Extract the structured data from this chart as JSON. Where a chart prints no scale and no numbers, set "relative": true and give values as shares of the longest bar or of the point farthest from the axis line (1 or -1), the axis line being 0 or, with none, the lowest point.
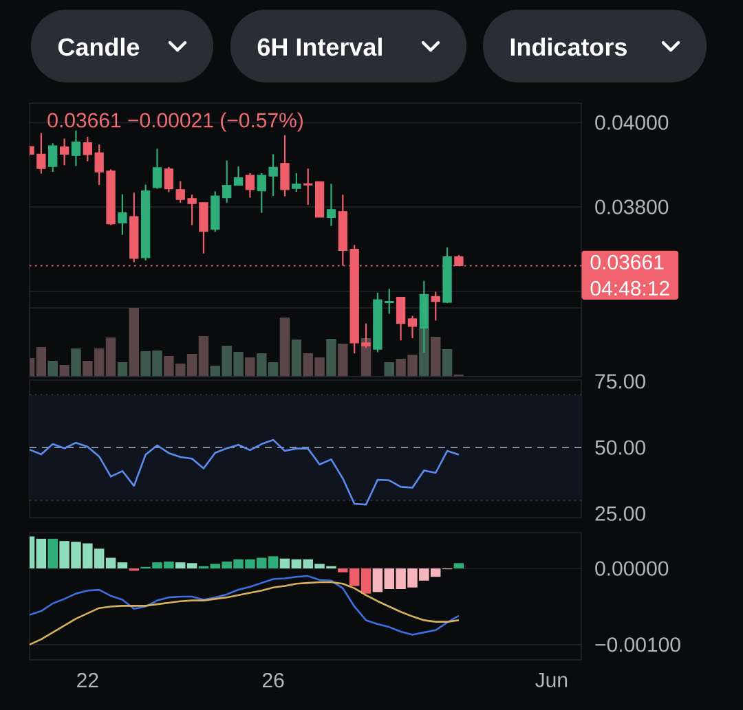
{
  "chart_data": [
    {
      "type": "other",
      "annotations": [
        "Candle",
        "6H Interval",
        "Indicators"
      ]
    },
    {
      "type": "candlestick",
      "x": [
        20.75,
        21,
        21.25,
        21.5,
        21.75,
        22,
        22.25,
        22.5,
        22.75,
        23,
        23.25,
        23.5,
        23.75,
        24,
        24.25,
        24.5,
        24.75,
        25,
        25.25,
        25.5,
        25.75,
        26,
        26.25,
        26.5,
        26.75,
        27,
        27.25,
        27.5,
        27.75,
        28,
        28.25,
        28.5,
        28.75,
        29,
        29.25,
        29.5,
        29.75,
        30
      ],
      "ohlc": [
        [
          0.03943,
          0.03945,
          0.03922,
          0.03925
        ],
        [
          0.03925,
          0.03975,
          0.03879,
          0.03891
        ],
        [
          0.03896,
          0.03951,
          0.03883,
          0.03945
        ],
        [
          0.03942,
          0.03962,
          0.03899,
          0.03925
        ],
        [
          0.03922,
          0.03981,
          0.03897,
          0.03954
        ],
        [
          0.03952,
          0.03966,
          0.03908,
          0.03924
        ],
        [
          0.03928,
          0.03948,
          0.03852,
          0.03883
        ],
        [
          0.03885,
          0.03889,
          0.03757,
          0.0376
        ],
        [
          0.03762,
          0.0383,
          0.03734,
          0.03786
        ],
        [
          0.03777,
          0.03834,
          0.03669,
          0.03678
        ],
        [
          0.0368,
          0.03853,
          0.03673,
          0.03838
        ],
        [
          0.03846,
          0.03938,
          0.03843,
          0.03893
        ],
        [
          0.0389,
          0.03895,
          0.03835,
          0.03843
        ],
        [
          0.03841,
          0.03861,
          0.0381,
          0.03818
        ],
        [
          0.0382,
          0.03829,
          0.03757,
          0.03808
        ],
        [
          0.0381,
          0.03811,
          0.0369,
          0.03742
        ],
        [
          0.03747,
          0.03837,
          0.03741,
          0.03826
        ],
        [
          0.03822,
          0.0391,
          0.0381,
          0.03851
        ],
        [
          0.03851,
          0.03896,
          0.03851,
          0.03869
        ],
        [
          0.03875,
          0.0388,
          0.03822,
          0.03841
        ],
        [
          0.03838,
          0.0388,
          0.03786,
          0.03875
        ],
        [
          0.03873,
          0.03925,
          0.03826,
          0.03894
        ],
        [
          0.03903,
          0.0397,
          0.03825,
          0.03841
        ],
        [
          0.03844,
          0.0388,
          0.03836,
          0.03854
        ],
        [
          0.03855,
          0.03891,
          0.03805,
          0.03852
        ],
        [
          0.0386,
          0.0386,
          0.03776,
          0.03776
        ],
        [
          0.03775,
          0.03855,
          0.03755,
          0.03794
        ],
        [
          0.03789,
          0.03829,
          0.03661,
          0.03697
        ],
        [
          0.037,
          0.0371,
          0.03453,
          0.03478
        ],
        [
          0.03478,
          0.03524,
          0.03466,
          0.03471
        ],
        [
          0.03463,
          0.03597,
          0.03456,
          0.0358
        ],
        [
          0.03573,
          0.03606,
          0.03547,
          0.03576
        ],
        [
          0.03586,
          0.03586,
          0.03484,
          0.03524
        ],
        [
          0.03535,
          0.03542,
          0.03489,
          0.03517
        ],
        [
          0.03513,
          0.03625,
          0.03455,
          0.03593
        ],
        [
          0.03588,
          0.03599,
          0.03531,
          0.03576
        ],
        [
          0.03574,
          0.03704,
          0.03572,
          0.03682
        ],
        [
          0.03682,
          0.03686,
          0.0366,
          0.03661
        ]
      ],
      "colors": [
        "#ef5f6b",
        "#ef5f6b",
        "#2fae7a",
        "#ef5f6b",
        "#2fae7a",
        "#ef5f6b",
        "#ef5f6b",
        "#ef5f6b",
        "#2fae7a",
        "#ef5f6b",
        "#2fae7a",
        "#2fae7a",
        "#ef5f6b",
        "#ef5f6b",
        "#ef5f6b",
        "#ef5f6b",
        "#2fae7a",
        "#2fae7a",
        "#2fae7a",
        "#ef5f6b",
        "#2fae7a",
        "#2fae7a",
        "#ef5f6b",
        "#2fae7a",
        "#ef5f6b",
        "#ef5f6b",
        "#2fae7a",
        "#ef5f6b",
        "#ef5f6b",
        "#ef5f6b",
        "#2fae7a",
        "#2fae7a",
        "#ef5f6b",
        "#ef5f6b",
        "#2fae7a",
        "#ef5f6b",
        "#2fae7a",
        "#ef5f6b"
      ],
      "xlim": [
        20.75,
        32.64
      ],
      "ylim": [
        0.03398,
        0.04046
      ],
      "yticks": [
        {
          "value": 0.036,
          "label": null
        },
        {
          "value": 0.038,
          "label": "0.03800"
        },
        {
          "value": 0.04,
          "label": "0.04000"
        }
      ],
      "grid": "y",
      "tick_labels": "y",
      "ref_lines": [
        {
          "axis": "y",
          "value": 0.03661,
          "label": "0.03661",
          "color": "#f0626e",
          "line_style": "dotted"
        }
      ],
      "annotations": [
        "0.03661  −0.00021 (−0.57%)",
        "04:48:12"
      ]
    },
    {
      "type": "bar",
      "relative": true,
      "x": [
        20.75,
        21,
        21.25,
        21.5,
        21.75,
        22,
        22.25,
        22.5,
        22.75,
        23,
        23.25,
        23.5,
        23.75,
        24,
        24.25,
        24.5,
        24.75,
        25,
        25.25,
        25.5,
        25.75,
        26,
        26.25,
        26.5,
        26.75,
        27,
        27.25,
        27.5,
        27.75,
        28,
        28.25,
        28.5,
        28.75,
        29,
        29.25,
        29.5,
        29.75,
        30
      ],
      "values": [
        0.27,
        0.43,
        0.23,
        0.17,
        0.41,
        0.23,
        0.41,
        0.57,
        0.21,
        1,
        0.37,
        0.38,
        0.3,
        0.19,
        0.33,
        0.59,
        0.16,
        0.45,
        0.36,
        0.28,
        0.34,
        0.21,
        0.86,
        0.54,
        0.34,
        0.28,
        0.55,
        0.48,
        null,
        0.56,
        null,
        0.21,
        0.26,
        0.32,
        0.7,
        0.58,
        0.4,
        0.03
      ],
      "colors": [
        "#5a4548",
        "#5a4548",
        "#3e5a4f",
        "#5a4548",
        "#3e5a4f",
        "#5a4548",
        "#5a4548",
        "#5a4548",
        "#3e5a4f",
        "#5a4548",
        "#3e5a4f",
        "#3e5a4f",
        "#5a4548",
        "#5a4548",
        "#5a4548",
        "#5a4548",
        "#3e5a4f",
        "#3e5a4f",
        "#3e5a4f",
        "#5a4548",
        "#3e5a4f",
        "#3e5a4f",
        "#5a4548",
        "#3e5a4f",
        "#5a4548",
        "#5a4548",
        "#3e5a4f",
        "#5a4548",
        "#5a4548",
        "#5a4548",
        "#3e5a4f",
        "#3e5a4f",
        "#5a4548",
        "#5a4548",
        "#3e5a4f",
        "#5a4548",
        "#3e5a4f",
        "#5a4548"
      ],
      "xlim": [
        20.75,
        32.64
      ]
    },
    {
      "type": "line",
      "color": "#5b8def",
      "x": [
        20.75,
        21,
        21.25,
        21.5,
        21.75,
        22,
        22.25,
        22.5,
        22.75,
        23,
        23.25,
        23.5,
        23.75,
        24,
        24.25,
        24.5,
        24.75,
        25,
        25.25,
        25.5,
        25.75,
        26,
        26.25,
        26.5,
        26.75,
        27,
        27.25,
        27.5,
        27.75,
        28,
        28.25,
        28.5,
        28.75,
        29,
        29.25,
        29.5,
        29.75,
        30
      ],
      "values": [
        49.2,
        47.4,
        51.3,
        49.7,
        51.8,
        50.3,
        46.6,
        39.0,
        41.1,
        35.5,
        47.3,
        50.8,
        47.9,
        46.4,
        45.8,
        42.1,
        48.0,
        49.7,
        51.0,
        49.0,
        51.3,
        52.9,
        48.7,
        49.6,
        49.6,
        43.6,
        45.5,
        38.3,
        28.7,
        28.4,
        37.8,
        37.6,
        35.1,
        34.8,
        41.3,
        40.4,
        48.7,
        47.3
      ],
      "xlim": [
        20.75,
        32.64
      ],
      "ylim": [
        23.5,
        75.5
      ],
      "yticks": [
        {
          "value": 25,
          "label": "25.00"
        },
        {
          "value": 50,
          "label": "50.00"
        },
        {
          "value": 75,
          "label": "75.00"
        }
      ],
      "tick_labels": "y",
      "bands": [
        {
          "axis": "y",
          "from": 30,
          "to": 70,
          "color": "#10141e"
        }
      ],
      "ref_lines": [
        {
          "axis": "y",
          "value": 70,
          "color": "#2a3050",
          "line_style": "dotted"
        },
        {
          "axis": "y",
          "value": 30,
          "color": "#2a3050",
          "line_style": "dotted"
        },
        {
          "axis": "y",
          "value": 50,
          "color": "#8a8d93",
          "line_style": "dashed"
        }
      ]
    },
    {
      "type": "bar",
      "x": [
        20.75,
        21,
        21.25,
        21.5,
        21.75,
        22,
        22.25,
        22.5,
        22.75,
        23,
        23.25,
        23.5,
        23.75,
        24,
        24.25,
        24.5,
        24.75,
        25,
        25.25,
        25.5,
        25.75,
        26,
        26.25,
        26.5,
        26.75,
        27,
        27.25,
        27.5,
        27.75,
        28,
        28.25,
        28.5,
        28.75,
        29,
        29.25,
        29.5,
        29.75,
        30
      ],
      "series": [
        {
          "type": "bar",
          "values": [
            0.00042,
            0.00039,
            0.00039,
            0.00036,
            0.00035,
            0.00033,
            0.00026,
            0.00014,
            8e-05,
            -3e-05,
            2e-05,
            8e-05,
            9e-05,
            8e-05,
            7e-05,
            3e-05,
            6e-05,
            9e-05,
            0.00012,
            0.00012,
            0.00014,
            0.00016,
            0.00013,
            0.00012,
            0.00012,
            6e-05,
            3e-05,
            -5e-05,
            -0.00023,
            -0.00033,
            -0.00031,
            -0.00027,
            -0.00027,
            -0.00025,
            -0.00016,
            -0.00011,
            -1e-05,
            7e-05
          ],
          "colors": [
            "#8fdcbc",
            "#8fdcbc",
            "#2fae7a",
            "#8fdcbc",
            "#8fdcbc",
            "#8fdcbc",
            "#8fdcbc",
            "#8fdcbc",
            "#8fdcbc",
            "#ef5f6b",
            "#2fae7a",
            "#2fae7a",
            "#2fae7a",
            "#8fdcbc",
            "#8fdcbc",
            "#2fae7a",
            "#2fae7a",
            "#2fae7a",
            "#2fae7a",
            "#2fae7a",
            "#2fae7a",
            "#2fae7a",
            "#8fdcbc",
            "#8fdcbc",
            "#8fdcbc",
            "#8fdcbc",
            "#8fdcbc",
            "#ef5f6b",
            "#ef5f6b",
            "#ef5f6b",
            "#f7b6bd",
            "#f7b6bd",
            "#f7b6bd",
            "#f7b6bd",
            "#f7b6bd",
            "#f7b6bd",
            "#f7b6bd",
            "#2fae7a"
          ]
        },
        {
          "type": "line",
          "color": "#3d6fe3",
          "values": [
            -0.00061,
            -0.00056,
            -0.00046,
            -0.0004,
            -0.00033,
            -0.00029,
            -0.00028,
            -0.00036,
            -0.00041,
            -0.00053,
            -0.0005,
            -0.00042,
            -0.00038,
            -0.00037,
            -0.00037,
            -0.00041,
            -0.00038,
            -0.00034,
            -0.00028,
            -0.00024,
            -0.00019,
            -0.00014,
            -0.00013,
            -0.00011,
            -0.0001,
            -0.00015,
            -0.00016,
            -0.00026,
            -0.0005,
            -0.00068,
            -0.00073,
            -0.00077,
            -0.00083,
            -0.00087,
            -0.00084,
            -0.00081,
            -0.00071,
            -0.00062
          ]
        },
        {
          "type": "line",
          "color": "#d6b25e",
          "values": [
            -0.001,
            -0.00093,
            -0.00084,
            -0.00075,
            -0.00066,
            -0.00059,
            -0.00052,
            -0.0005,
            -0.00049,
            -0.00049,
            -0.00049,
            -0.00047,
            -0.00045,
            -0.00043,
            -0.00042,
            -0.00042,
            -0.0004,
            -0.00038,
            -0.00035,
            -0.00032,
            -0.00029,
            -0.00025,
            -0.00023,
            -0.0002,
            -0.00019,
            -0.00018,
            -0.00018,
            -0.0002,
            -0.00026,
            -0.00035,
            -0.00043,
            -0.0005,
            -0.00057,
            -0.00063,
            -0.00068,
            -0.0007,
            -0.0007,
            -0.00068
          ]
        }
      ],
      "xlim": [
        20.75,
        32.64
      ],
      "ylim": [
        -0.0012,
        0.00047
      ],
      "xticks": [
        22,
        26,
        {
          "value": 32,
          "label": "Jun"
        }
      ],
      "yticks": [
        {
          "value": -0.001,
          "label": "−0.00100"
        },
        {
          "value": 0,
          "label": "0.00000"
        }
      ],
      "grid": "y"
    }
  ]
}
